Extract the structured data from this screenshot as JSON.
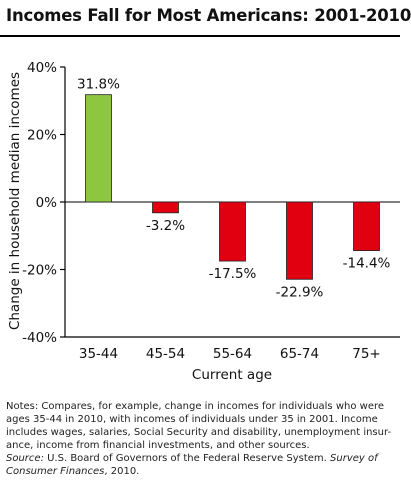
{
  "chart_data": {
    "type": "bar",
    "title": "Incomes Fall for Most Americans: 2001-2010",
    "xlabel": "Current age",
    "ylabel": "Change in household median incomes",
    "categories": [
      "35-44",
      "45-54",
      "55-64",
      "65-74",
      "75+"
    ],
    "values": [
      31.8,
      -3.2,
      -17.5,
      -22.9,
      -14.4
    ],
    "value_labels": [
      "31.8%",
      "-3.2%",
      "-17.5%",
      "-22.9%",
      "-14.4%"
    ],
    "ylim": [
      -40,
      40
    ],
    "yticks": [
      40,
      20,
      0,
      -20,
      -40
    ],
    "ytick_labels": [
      "40%",
      "20%",
      "0%",
      "-20%",
      "-40%"
    ],
    "grid": false,
    "legend": "none",
    "colors": {
      "positive": "#8dc63f",
      "negative": "#e00010",
      "outline": "#222222"
    }
  },
  "notes": {
    "line1": "Notes: Compares, for example, change in incomes for individuals who were",
    "line2": "ages 35-44 in 2010, with incomes of individuals under 35 in 2001.  Income",
    "line3": "includes wages, salaries, Social Security and disability, unemployment insur-",
    "line4": "ance, income from financial investments, and other sources.",
    "source_label": "Source:",
    "source_text": " U.S. Board of Governors of the Federal Reserve System.  ",
    "survey_name": "Survey of Consumer Finances",
    "survey_year": ", 2010."
  }
}
